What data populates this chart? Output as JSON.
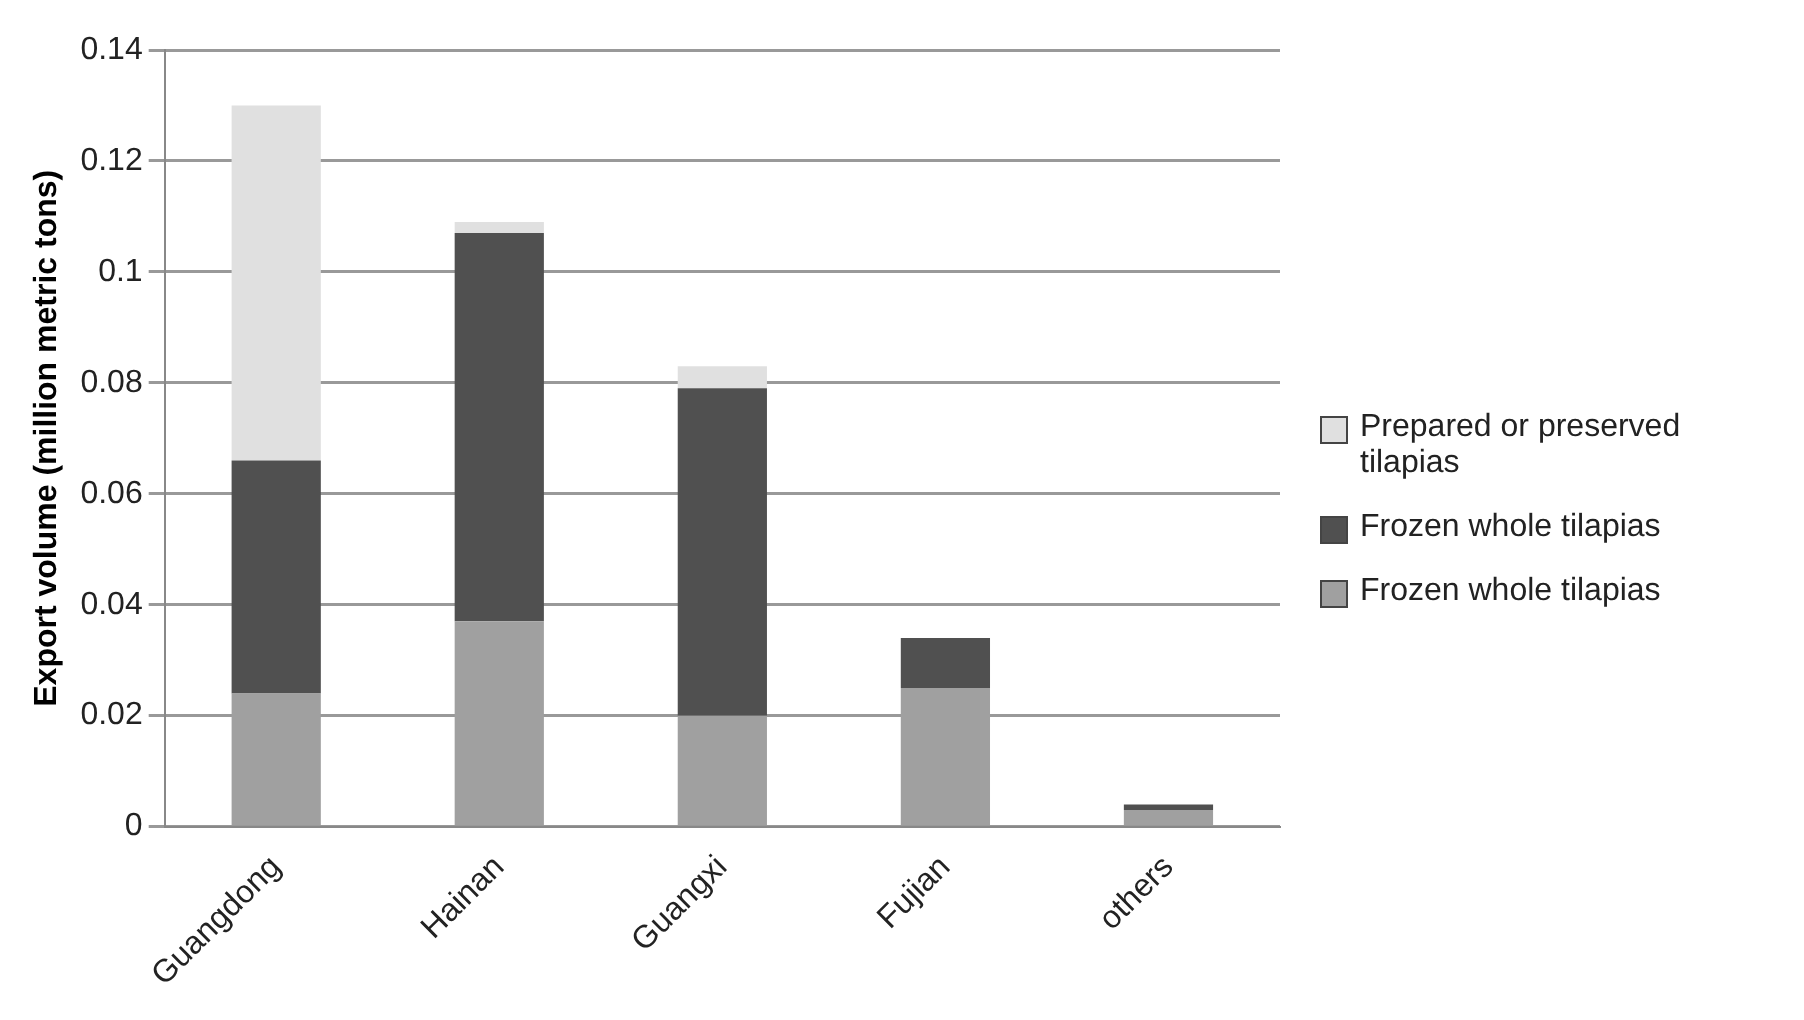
{
  "chart_data": {
    "type": "bar",
    "stacked": true,
    "ylabel": "Export volume (million metric tons)",
    "categories": [
      "Guangdong",
      "Hainan",
      "Guangxi",
      "Fujian",
      "others"
    ],
    "series": [
      {
        "name": "Frozen whole tilapias",
        "color": "#a0a0a0",
        "values": [
          0.024,
          0.037,
          0.02,
          0.025,
          0.003
        ]
      },
      {
        "name": "Frozen whole tilapias",
        "color": "#505050",
        "values": [
          0.042,
          0.07,
          0.059,
          0.009,
          0.001
        ]
      },
      {
        "name": "Prepared or preserved tilapias",
        "color": "#e0e0e0",
        "values": [
          0.064,
          0.002,
          0.004,
          null,
          null
        ]
      }
    ],
    "ylim": [
      0,
      0.14
    ],
    "yticks": [
      0,
      0.02,
      0.04,
      0.06,
      0.08,
      0.1,
      0.12,
      0.14
    ],
    "grid": "y",
    "legend": "right"
  }
}
